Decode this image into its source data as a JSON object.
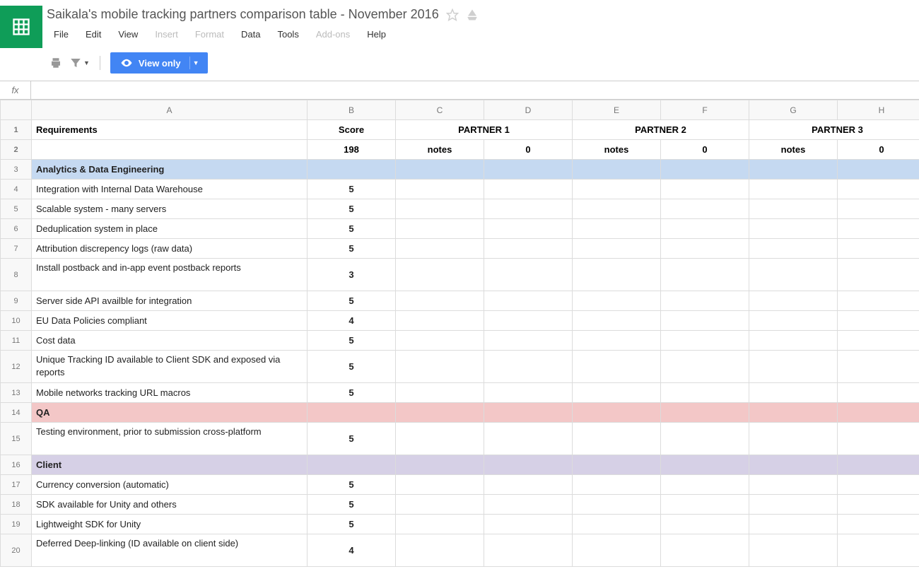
{
  "doc_title": "Saikala's mobile tracking partners comparison table - November 2016",
  "menu": {
    "file": "File",
    "edit": "Edit",
    "view": "View",
    "insert": "Insert",
    "format": "Format",
    "data": "Data",
    "tools": "Tools",
    "addons": "Add-ons",
    "help": "Help"
  },
  "toolbar": {
    "view_only": "View only"
  },
  "fx_label": "fx",
  "columns": [
    "A",
    "B",
    "C",
    "D",
    "E",
    "F",
    "G",
    "H"
  ],
  "col_widths": {
    "A": 390,
    "other": 125
  },
  "section_colors": {
    "analytics": "#c5d9f1",
    "qa": "#f3c7c7",
    "client": "#d6d0e6"
  },
  "header_row1": {
    "req": "Requirements",
    "score": "Score",
    "p1": "PARTNER 1",
    "p2": "PARTNER 2",
    "p3": "PARTNER 3"
  },
  "header_row2": {
    "score_total": "198",
    "notes": "notes",
    "zero": "0"
  },
  "rows": [
    {
      "n": 3,
      "type": "section",
      "color": "analytics",
      "label": "Analytics & Data Engineering"
    },
    {
      "n": 4,
      "type": "item",
      "label": "Integration with Internal Data Warehouse",
      "score": "5"
    },
    {
      "n": 5,
      "type": "item",
      "label": "Scalable system - many servers",
      "score": "5"
    },
    {
      "n": 6,
      "type": "item",
      "label": "Deduplication system in place",
      "score": "5"
    },
    {
      "n": 7,
      "type": "item",
      "label": "Attribution discrepency logs (raw data)",
      "score": "5"
    },
    {
      "n": 8,
      "type": "item-tall",
      "label": "Install postback and in-app event postback reports",
      "score": "3"
    },
    {
      "n": 9,
      "type": "item",
      "label": "Server side API availble for integration",
      "score": "5"
    },
    {
      "n": 10,
      "type": "item",
      "label": "EU Data Policies compliant",
      "score": "4"
    },
    {
      "n": 11,
      "type": "item",
      "label": "Cost data",
      "score": "5"
    },
    {
      "n": 12,
      "type": "item-tall",
      "label": "Unique Tracking ID available to Client SDK and exposed via reports",
      "score": "5"
    },
    {
      "n": 13,
      "type": "item",
      "label": "Mobile networks tracking URL macros",
      "score": "5"
    },
    {
      "n": 14,
      "type": "section",
      "color": "qa",
      "label": "QA"
    },
    {
      "n": 15,
      "type": "item-tall",
      "label": "Testing environment, prior to submission cross-platform",
      "score": "5"
    },
    {
      "n": 16,
      "type": "section",
      "color": "client",
      "label": "Client"
    },
    {
      "n": 17,
      "type": "item",
      "label": "Currency conversion (automatic)",
      "score": "5"
    },
    {
      "n": 18,
      "type": "item",
      "label": "SDK available for Unity and others",
      "score": "5"
    },
    {
      "n": 19,
      "type": "item",
      "label": "Lightweight SDK for Unity",
      "score": "5"
    },
    {
      "n": 20,
      "type": "item-tall",
      "label": "Deferred Deep-linking (ID available on client side)",
      "score": "4"
    }
  ]
}
